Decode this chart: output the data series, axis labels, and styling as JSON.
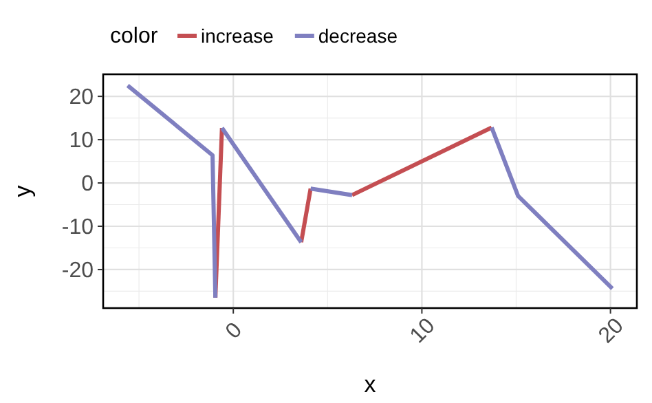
{
  "chart_data": {
    "type": "line",
    "xlabel": "x",
    "ylabel": "y",
    "legend_title": "color",
    "legend": "top",
    "grid": true,
    "line_style": "solid",
    "xlim": [
      -6.9,
      21.4
    ],
    "ylim": [
      -28.9,
      25.1
    ],
    "xticks": [
      0,
      10,
      20
    ],
    "yticks": [
      -20,
      -10,
      0,
      10,
      20
    ],
    "series": [
      {
        "name": "increase",
        "color": "#c44e52",
        "x": [
          -0.95,
          -0.6
        ],
        "values": [
          -26.5,
          12.7
        ]
      },
      {
        "color": "#c44e52",
        "x": [
          3.6,
          4.1
        ],
        "values": [
          -13.7,
          -1.3
        ]
      },
      {
        "color": "#c44e52",
        "x": [
          6.3,
          13.7
        ],
        "values": [
          -2.8,
          12.8
        ]
      },
      {
        "name": "decrease",
        "color": "#7f7fc0",
        "x": [
          -5.6,
          -1.1,
          -0.95
        ],
        "values": [
          22.5,
          6.4,
          -26.5
        ]
      },
      {
        "color": "#7f7fc0",
        "x": [
          -0.6,
          3.6
        ],
        "values": [
          12.7,
          -13.7
        ]
      },
      {
        "color": "#7f7fc0",
        "x": [
          4.1,
          6.3
        ],
        "values": [
          -1.3,
          -2.8
        ]
      },
      {
        "color": "#7f7fc0",
        "x": [
          13.7,
          15.1,
          20.1
        ],
        "values": [
          12.8,
          -3,
          -24.4
        ]
      }
    ]
  }
}
